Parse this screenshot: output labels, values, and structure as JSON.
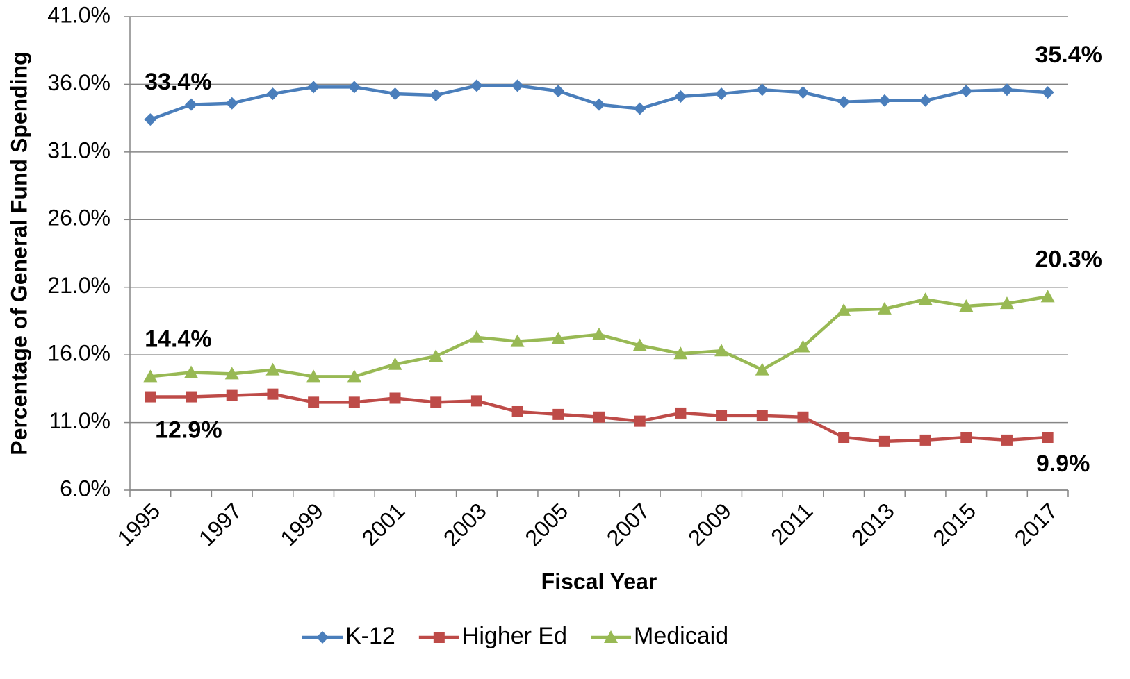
{
  "chart_data": {
    "type": "line",
    "x_label": "Fiscal Year",
    "y_label": "Percentage of General Fund Spending",
    "categories": [
      "1995",
      null,
      "1997",
      null,
      "1999",
      null,
      "2001",
      null,
      "2003",
      null,
      "2005",
      null,
      "2007",
      null,
      "2009",
      null,
      "2011",
      null,
      "2013",
      null,
      "2015",
      null,
      "2017"
    ],
    "series": [
      {
        "name": "K-12",
        "color": "#4a7ebb",
        "marker": "diamond",
        "values": [
          33.4,
          34.5,
          34.6,
          35.3,
          35.8,
          35.8,
          35.3,
          35.2,
          35.9,
          35.9,
          35.5,
          34.5,
          34.2,
          35.1,
          35.3,
          35.6,
          35.4,
          34.7,
          34.8,
          34.8,
          35.5,
          35.6,
          35.4
        ],
        "value_labels": [
          "33.4%",
          null,
          null,
          null,
          null,
          null,
          null,
          null,
          null,
          null,
          null,
          null,
          null,
          null,
          null,
          null,
          null,
          null,
          null,
          null,
          null,
          null,
          "35.4%"
        ]
      },
      {
        "name": "Higher Ed",
        "color": "#be4b48",
        "marker": "square",
        "values": [
          12.9,
          12.9,
          13.0,
          13.1,
          12.5,
          12.5,
          12.8,
          12.5,
          12.6,
          11.8,
          11.6,
          11.4,
          11.1,
          11.7,
          11.5,
          11.5,
          11.4,
          9.9,
          9.6,
          9.7,
          9.9,
          9.7,
          9.9
        ],
        "value_labels": [
          "12.9%",
          null,
          null,
          null,
          null,
          null,
          null,
          null,
          null,
          null,
          null,
          null,
          null,
          null,
          null,
          null,
          null,
          null,
          null,
          null,
          null,
          null,
          "9.9%"
        ]
      },
      {
        "name": "Medicaid",
        "color": "#98b954",
        "marker": "triangle",
        "values": [
          14.4,
          14.7,
          14.6,
          14.9,
          14.4,
          14.4,
          15.3,
          15.9,
          17.3,
          17.0,
          17.2,
          17.5,
          16.7,
          16.1,
          16.3,
          14.9,
          16.6,
          19.3,
          19.4,
          20.1,
          19.6,
          19.8,
          20.3
        ],
        "value_labels": [
          "14.4%",
          null,
          null,
          null,
          null,
          null,
          null,
          null,
          null,
          null,
          null,
          null,
          null,
          null,
          null,
          null,
          null,
          null,
          null,
          null,
          null,
          null,
          "20.3%"
        ]
      }
    ],
    "ylim": [
      6,
      41
    ],
    "yticks": [
      {
        "value": 6,
        "label": "6.0%"
      },
      {
        "value": 11,
        "label": "11.0%"
      },
      {
        "value": 16,
        "label": "16.0%"
      },
      {
        "value": 21,
        "label": "21.0%"
      },
      {
        "value": 26,
        "label": "26.0%"
      },
      {
        "value": 31,
        "label": "31.0%"
      },
      {
        "value": 36,
        "label": "36.0%"
      },
      {
        "value": 41,
        "label": "41.0%"
      }
    ],
    "grid": true,
    "legend": "bottom"
  }
}
